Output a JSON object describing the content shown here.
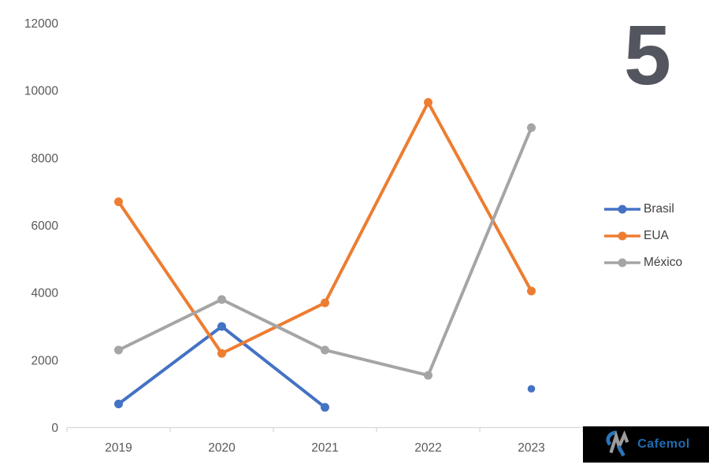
{
  "slide_number": "5",
  "chart_data": {
    "type": "line",
    "title": "",
    "xlabel": "",
    "ylabel": "",
    "categories": [
      "2019",
      "2020",
      "2021",
      "2022",
      "2023"
    ],
    "series": [
      {
        "name": "Brasil",
        "color": "#4472C4",
        "values": [
          700,
          3000,
          600,
          null,
          1150
        ]
      },
      {
        "name": "EUA",
        "color": "#ED7D31",
        "values": [
          6700,
          2200,
          3700,
          9650,
          4050
        ]
      },
      {
        "name": "México",
        "color": "#A5A5A5",
        "values": [
          2300,
          3800,
          2300,
          1550,
          8900
        ]
      }
    ],
    "ylim": [
      0,
      12000
    ],
    "y_ticks": [
      0,
      2000,
      4000,
      6000,
      8000,
      10000,
      12000
    ],
    "grid": false,
    "legend_position": "right",
    "marker": "circle"
  },
  "styles": {
    "axis_text_color": "#595959",
    "legend_text_color": "#404040",
    "axis_line_color": "#D9D9D9",
    "big_number_color": "#54565F",
    "background": "#FFFFFF"
  },
  "logo": {
    "text": "Cafemol",
    "text_color": "#1E6BB0",
    "background": "#000000",
    "mark_blue": "#2B74B8",
    "mark_gray": "#9C9C9C"
  }
}
